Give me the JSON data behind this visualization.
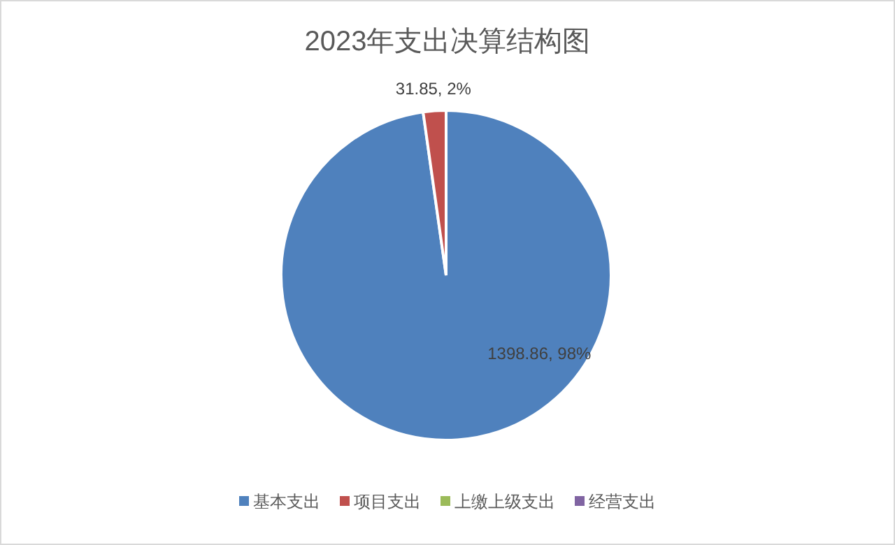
{
  "chart_data": {
    "type": "pie",
    "title": "2023年支出决算结构图",
    "categories": [
      "基本支出",
      "项目支出",
      "上缴上级支出",
      "经营支出"
    ],
    "values": [
      1398.86,
      31.85,
      0,
      0
    ],
    "colors": [
      "#4f81bd",
      "#c0504d",
      "#9bbb59",
      "#8064a2"
    ],
    "value_labels": [
      "1398.86, 98%",
      "31.85, 2%",
      null,
      null
    ],
    "legend": "bottom"
  }
}
